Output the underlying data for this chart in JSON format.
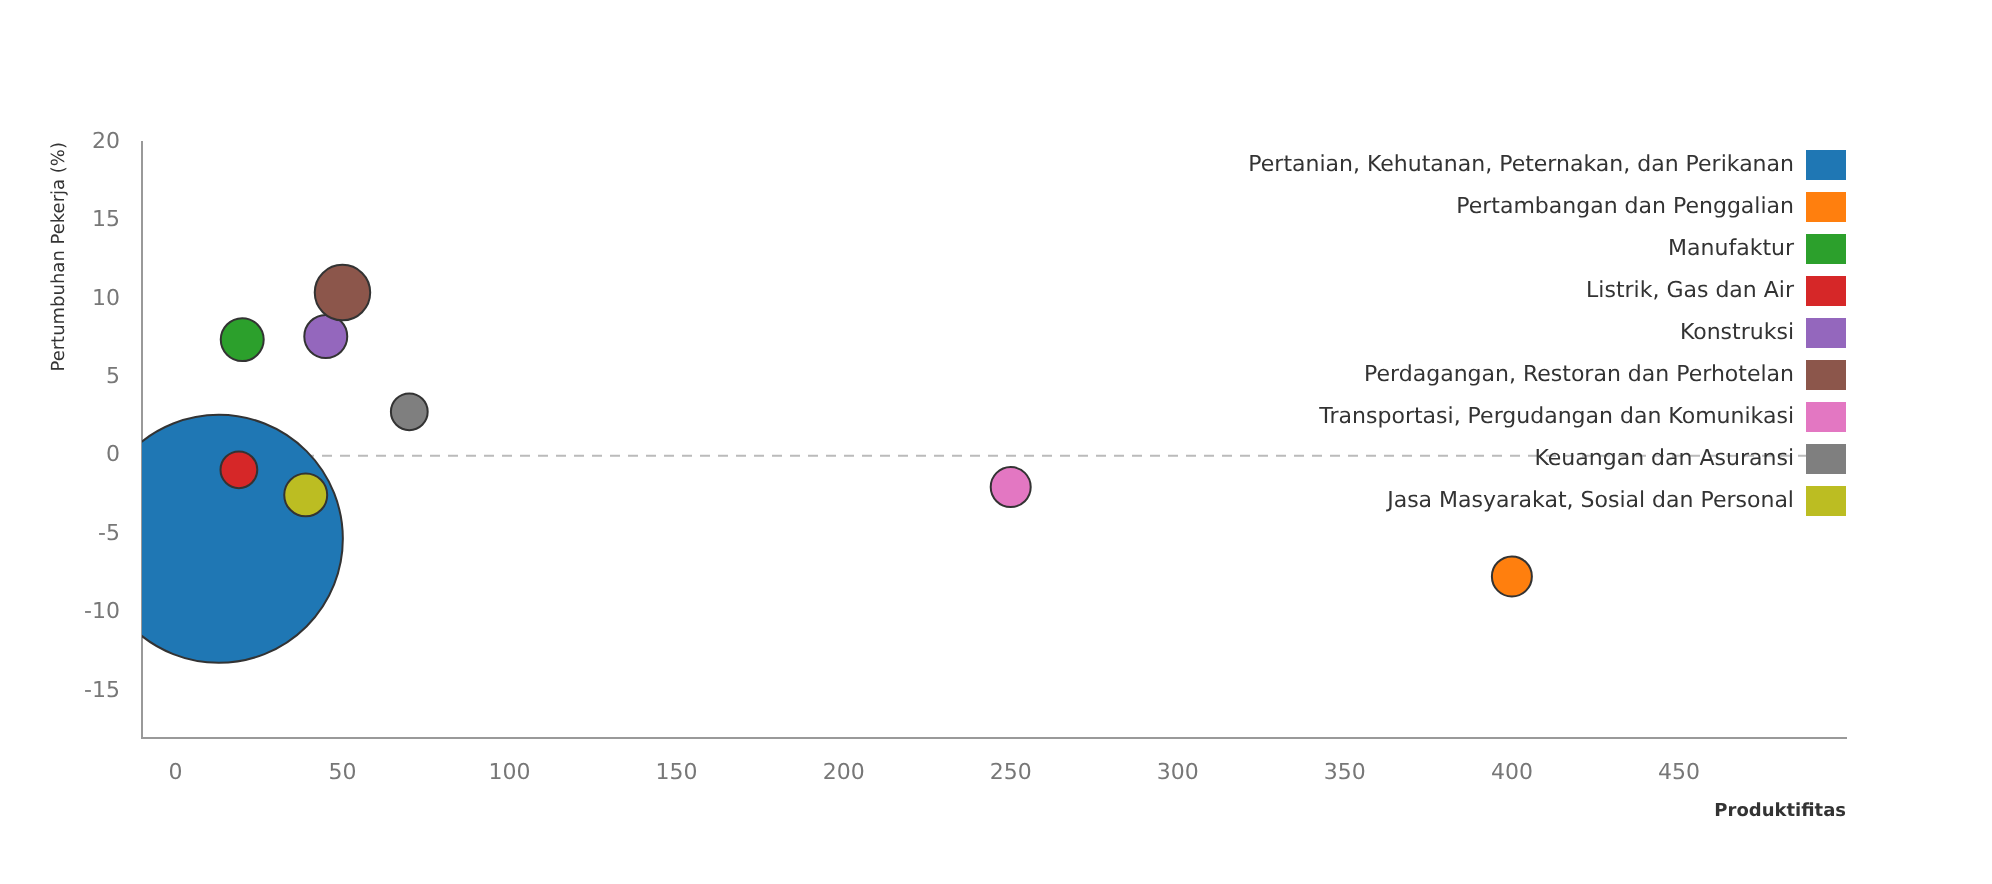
{
  "chart_data": {
    "type": "bubble",
    "xlabel": "Produktifitas",
    "ylabel": "Pertumbuhan Pekerja (%)",
    "xlim": [
      -10,
      500
    ],
    "xticks": [
      0,
      50,
      100,
      150,
      200,
      250,
      300,
      350,
      400,
      450
    ],
    "ylim": [
      -18,
      20
    ],
    "yticks": [
      -15,
      -10,
      -5,
      0,
      5,
      10,
      15,
      20
    ],
    "grid": false,
    "legend": "top right",
    "ref_lines": [
      {
        "axis": "y",
        "value": 0,
        "line_style": "dashed",
        "color": "#bbbbbb"
      }
    ],
    "series": [
      {
        "name": "Pertanian, Kehutanan, Peternakan, dan Perikanan",
        "color": "#1f77b4",
        "x": [
          13
        ],
        "values": [
          -5.3
        ],
        "sizes": [
          1
        ]
      },
      {
        "name": "Pertambangan dan Penggalian",
        "color": "#ff7f0e",
        "x": [
          400
        ],
        "values": [
          -7.7
        ],
        "sizes": [
          0.026
        ]
      },
      {
        "name": "Manufaktur",
        "color": "#2ca02c",
        "x": [
          20
        ],
        "values": [
          7.4
        ],
        "sizes": [
          0.03
        ]
      },
      {
        "name": "Listrik, Gas dan Air",
        "color": "#d62728",
        "x": [
          19
        ],
        "values": [
          -0.9
        ],
        "sizes": [
          0.022
        ]
      },
      {
        "name": "Konstruksi",
        "color": "#9467bd",
        "x": [
          45
        ],
        "values": [
          7.6
        ],
        "sizes": [
          0.03
        ]
      },
      {
        "name": "Perdagangan, Restoran dan Perhotelan",
        "color": "#8c564b",
        "x": [
          50
        ],
        "values": [
          10.4
        ],
        "sizes": [
          0.05
        ]
      },
      {
        "name": "Transportasi, Pergudangan dan Komunikasi",
        "color": "#e377c2",
        "x": [
          250
        ],
        "values": [
          -2.0
        ],
        "sizes": [
          0.026
        ]
      },
      {
        "name": "Keuangan dan Asuransi",
        "color": "#7f7f7f",
        "x": [
          70
        ],
        "values": [
          2.8
        ],
        "sizes": [
          0.022
        ]
      },
      {
        "name": "Jasa Masyarakat, Sosial dan Personal",
        "color": "#bcbd22",
        "x": [
          39
        ],
        "values": [
          -2.5
        ],
        "sizes": [
          0.03
        ]
      }
    ]
  }
}
